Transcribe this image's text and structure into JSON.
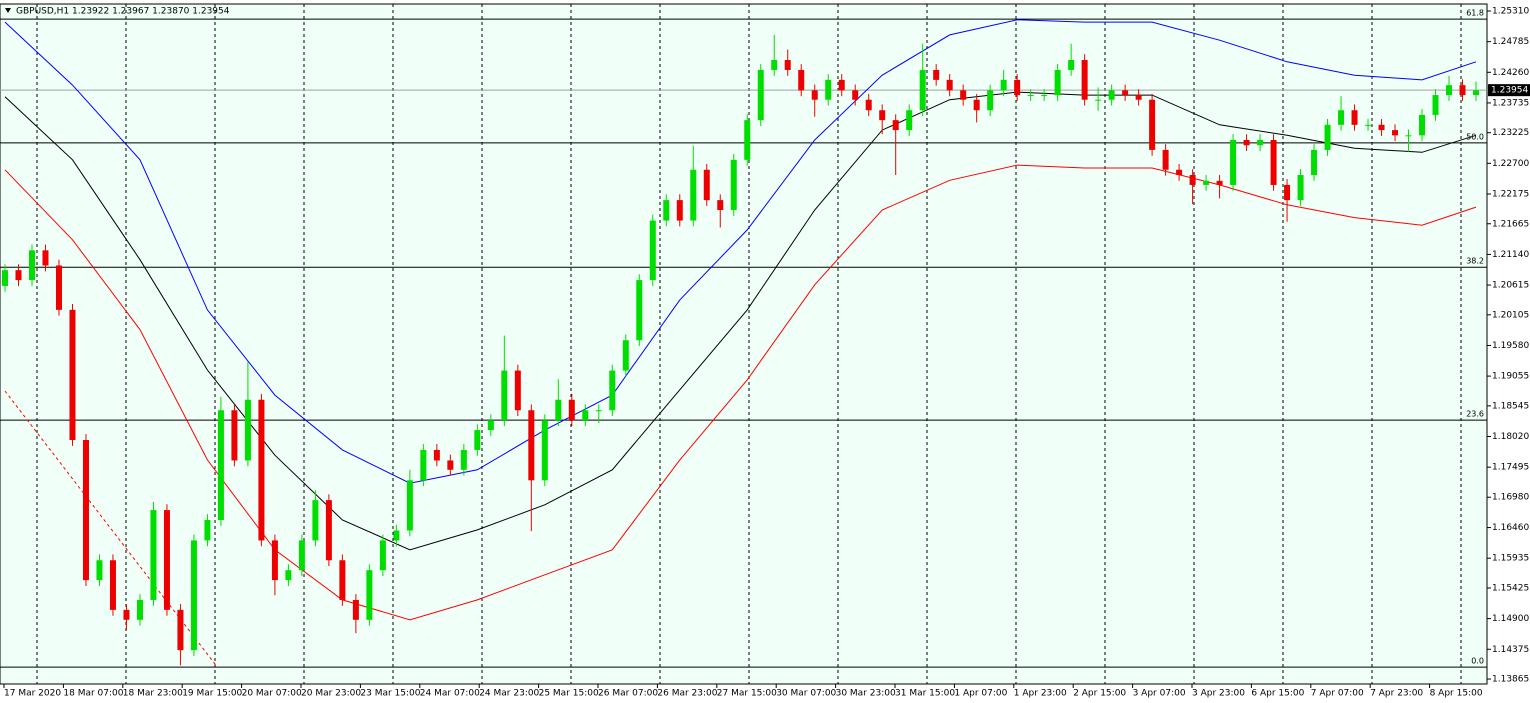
{
  "chart_data": {
    "type": "candlestick",
    "title": "GBPUSD,H1  1.23922 1.23967 1.23870 1.23954",
    "up_color": "#00dd00",
    "down_color": "#ee0000",
    "ylim": [
      1.1378,
      1.2543
    ],
    "yticks": [
      {
        "value": 1.2531,
        "label": "1.25310"
      },
      1.24785,
      {
        "value": 1.2426,
        "label": "1.24260"
      },
      1.23735,
      1.23225,
      {
        "value": 1.227,
        "label": "1.22700"
      },
      1.22175,
      1.21665,
      {
        "value": 1.2114,
        "label": "1.21140"
      },
      1.20615,
      1.20105,
      {
        "value": 1.1958,
        "label": "1.19580"
      },
      1.19055,
      1.18545,
      {
        "value": 1.1802,
        "label": "1.18020"
      },
      1.17495,
      {
        "value": 1.1698,
        "label": "1.16980"
      },
      {
        "value": 1.1646,
        "label": "1.16460"
      },
      1.15935,
      1.15425,
      {
        "value": 1.149,
        "label": "1.14900"
      },
      1.14375,
      1.13865
    ],
    "time_labels": [
      "17 Mar 2020",
      "18 Mar 07:00",
      "18 Mar 23:00",
      "19 Mar 15:00",
      "20 Mar 07:00",
      "20 Mar 23:00",
      "23 Mar 15:00",
      "24 Mar 07:00",
      "24 Mar 23:00",
      "25 Mar 15:00",
      "26 Mar 07:00",
      "26 Mar 23:00",
      "27 Mar 15:00",
      "30 Mar 07:00",
      "30 Mar 23:00",
      "31 Mar 15:00",
      "1 Apr 07:00",
      "1 Apr 23:00",
      "2 Apr 15:00",
      "3 Apr 07:00",
      "3 Apr 23:00",
      "6 Apr 15:00",
      "7 Apr 07:00",
      "7 Apr 23:00",
      "8 Apr 15:00"
    ],
    "open": [
      1.206,
      1.2087,
      1.207,
      1.2121,
      1.2095,
      1.2019,
      1.1796,
      1.1556,
      1.159,
      1.1505,
      1.1488,
      1.1522,
      1.1676,
      1.1505,
      1.1436,
      1.1624,
      1.1659,
      1.1847,
      1.1761,
      1.1865,
      1.1624,
      1.1556,
      1.1573,
      1.1624,
      1.1693,
      1.159,
      1.1522,
      1.1488,
      1.1573,
      1.1624,
      1.1641,
      1.1727,
      1.1779,
      1.1761,
      1.1745,
      1.1779,
      1.1813,
      1.183,
      1.1915,
      1.1847,
      1.1727,
      1.183,
      1.1865,
      1.183,
      1.1847,
      1.1847,
      1.1915,
      1.1967,
      1.207,
      1.2172,
      1.2207,
      1.2172,
      1.2259,
      1.2207,
      1.219,
      1.2276,
      1.2344,
      1.243,
      1.2447,
      1.243,
      1.2395,
      1.2379,
      1.2413,
      1.2395,
      1.2379,
      1.2361,
      1.2344,
      1.2327,
      1.2361,
      1.243,
      1.2413,
      1.2395,
      1.2379,
      1.2361,
      1.2395,
      1.2413,
      1.2387,
      1.2387,
      1.2387,
      1.243,
      1.2447,
      1.2379,
      1.2379,
      1.2395,
      1.2387,
      1.2379,
      1.2293,
      1.2259,
      1.225,
      1.2233,
      1.224,
      1.2233,
      1.231,
      1.2301,
      1.231,
      1.2233,
      1.2207,
      1.225,
      1.2293,
      1.2336,
      1.2361,
      1.2336,
      1.2336,
      1.2327,
      1.2318,
      1.2318,
      1.2353,
      1.2387,
      1.2404,
      1.2387
    ],
    "high": [
      1.2097,
      1.2097,
      1.2131,
      1.2131,
      1.2105,
      1.2029,
      1.1806,
      1.16,
      1.16,
      1.1515,
      1.1532,
      1.169,
      1.1686,
      1.1515,
      1.1634,
      1.1669,
      1.187,
      1.1857,
      1.193,
      1.1875,
      1.1634,
      1.1583,
      1.1634,
      1.171,
      1.1703,
      1.16,
      1.1532,
      1.1583,
      1.1634,
      1.1651,
      1.1745,
      1.1789,
      1.1789,
      1.1771,
      1.1789,
      1.1823,
      1.184,
      1.1975,
      1.1925,
      1.1857,
      1.184,
      1.19,
      1.1875,
      1.1857,
      1.1857,
      1.1925,
      1.1977,
      1.208,
      1.2182,
      1.2217,
      1.2217,
      1.23,
      1.2269,
      1.2217,
      1.2286,
      1.2354,
      1.244,
      1.249,
      1.2465,
      1.244,
      1.2405,
      1.2423,
      1.2423,
      1.2405,
      1.2389,
      1.2371,
      1.2354,
      1.2371,
      1.2475,
      1.244,
      1.2423,
      1.2405,
      1.2389,
      1.2405,
      1.243,
      1.2423,
      1.2397,
      1.2397,
      1.244,
      1.2475,
      1.2457,
      1.24,
      1.2405,
      1.2405,
      1.2397,
      1.2389,
      1.2303,
      1.2269,
      1.226,
      1.225,
      1.225,
      1.232,
      1.232,
      1.232,
      1.232,
      1.2243,
      1.226,
      1.2303,
      1.2346,
      1.2385,
      1.2371,
      1.2346,
      1.2346,
      1.2337,
      1.2328,
      1.2363,
      1.2397,
      1.242,
      1.2414,
      1.241
    ],
    "low": [
      1.205,
      1.206,
      1.206,
      1.2085,
      1.2009,
      1.1786,
      1.1546,
      1.1546,
      1.1495,
      1.147,
      1.1478,
      1.1512,
      1.1495,
      1.141,
      1.1426,
      1.1614,
      1.1649,
      1.1751,
      1.1751,
      1.1614,
      1.153,
      1.1546,
      1.1563,
      1.1614,
      1.158,
      1.1512,
      1.1465,
      1.1478,
      1.1563,
      1.1614,
      1.1631,
      1.1717,
      1.1751,
      1.1735,
      1.1735,
      1.1769,
      1.1803,
      1.182,
      1.1837,
      1.164,
      1.1717,
      1.182,
      1.182,
      1.182,
      1.1825,
      1.1837,
      1.1905,
      1.1957,
      1.206,
      1.2162,
      1.2162,
      1.2162,
      1.2197,
      1.216,
      1.218,
      1.2266,
      1.2334,
      1.242,
      1.242,
      1.2385,
      1.235,
      1.2369,
      1.2385,
      1.2369,
      1.2351,
      1.232,
      1.225,
      1.2317,
      1.2351,
      1.2403,
      1.2385,
      1.2369,
      1.234,
      1.2351,
      1.2385,
      1.2377,
      1.2377,
      1.2377,
      1.2377,
      1.242,
      1.2369,
      1.236,
      1.2369,
      1.2377,
      1.2369,
      1.2283,
      1.2249,
      1.224,
      1.22,
      1.2223,
      1.221,
      1.2223,
      1.2291,
      1.2291,
      1.2223,
      1.217,
      1.2197,
      1.224,
      1.2283,
      1.2326,
      1.2326,
      1.2326,
      1.2317,
      1.2308,
      1.229,
      1.2308,
      1.2343,
      1.2377,
      1.2377,
      1.2377
    ],
    "close": [
      1.2087,
      1.207,
      1.2121,
      1.2095,
      1.2019,
      1.1796,
      1.1556,
      1.159,
      1.1505,
      1.1488,
      1.1522,
      1.1676,
      1.1505,
      1.1436,
      1.1624,
      1.1659,
      1.1847,
      1.1761,
      1.1865,
      1.1624,
      1.1556,
      1.1573,
      1.1624,
      1.1693,
      1.159,
      1.1522,
      1.1488,
      1.1573,
      1.1624,
      1.1641,
      1.1727,
      1.1779,
      1.1761,
      1.1745,
      1.1779,
      1.1813,
      1.183,
      1.1915,
      1.1847,
      1.1727,
      1.183,
      1.1865,
      1.183,
      1.1847,
      1.1847,
      1.1915,
      1.1967,
      1.207,
      1.2172,
      1.2207,
      1.2172,
      1.2259,
      1.2207,
      1.219,
      1.2276,
      1.2344,
      1.243,
      1.2447,
      1.243,
      1.2395,
      1.2379,
      1.2413,
      1.2395,
      1.2379,
      1.2361,
      1.2344,
      1.2327,
      1.2361,
      1.243,
      1.2413,
      1.2395,
      1.2379,
      1.2361,
      1.2395,
      1.2413,
      1.2387,
      1.2387,
      1.2387,
      1.243,
      1.2447,
      1.2379,
      1.2379,
      1.2395,
      1.2387,
      1.2379,
      1.2293,
      1.2259,
      1.225,
      1.2233,
      1.224,
      1.2233,
      1.231,
      1.2301,
      1.231,
      1.2233,
      1.2207,
      1.225,
      1.2293,
      1.2336,
      1.2361,
      1.2336,
      1.2336,
      1.2327,
      1.2318,
      1.2318,
      1.2353,
      1.2387,
      1.2404,
      1.2387,
      1.2395
    ],
    "overlays": [
      {
        "color": "#0000ff",
        "x": [
          0,
          5,
          10,
          15,
          20,
          25,
          30,
          35,
          40,
          45,
          50,
          55,
          60,
          65,
          70,
          75,
          80,
          85,
          90,
          95,
          100,
          105,
          109
        ],
        "values": [
          1.2512,
          1.2404,
          1.2276,
          1.2019,
          1.1873,
          1.1779,
          1.1722,
          1.1745,
          1.1813,
          1.1873,
          1.2036,
          1.2156,
          1.231,
          1.2421,
          1.249,
          1.2516,
          1.2512,
          1.2512,
          1.2481,
          1.2444,
          1.2421,
          1.2413,
          1.2444
        ]
      },
      {
        "color": "#000000",
        "x": [
          0,
          5,
          10,
          15,
          20,
          25,
          30,
          35,
          40,
          45,
          50,
          55,
          60,
          65,
          70,
          75,
          80,
          85,
          90,
          95,
          100,
          105,
          109
        ],
        "values": [
          1.2384,
          1.2276,
          1.2105,
          1.1916,
          1.177,
          1.1659,
          1.1608,
          1.1642,
          1.1685,
          1.1745,
          1.1882,
          1.2019,
          1.219,
          1.2327,
          1.2379,
          1.2392,
          1.2387,
          1.2387,
          1.2336,
          1.2318,
          1.2296,
          1.2289,
          1.2318
        ]
      },
      {
        "color": "#ff0000",
        "x": [
          0,
          5,
          10,
          15,
          20,
          25,
          30,
          35,
          40,
          45,
          50,
          55,
          60,
          65,
          70,
          75,
          80,
          85,
          90,
          95,
          100,
          105,
          109
        ],
        "values": [
          1.2259,
          1.2139,
          1.1985,
          1.1762,
          1.1608,
          1.1522,
          1.1488,
          1.1522,
          1.1565,
          1.1608,
          1.1762,
          1.1899,
          1.2062,
          1.219,
          1.2241,
          1.2267,
          1.2262,
          1.2262,
          1.2233,
          1.2199,
          1.2177,
          1.2164,
          1.2195
        ]
      }
    ],
    "trendline": {
      "color": "#ff0000",
      "x": [
        0,
        15.6
      ],
      "values": [
        1.188,
        1.1411
      ]
    },
    "levels": [
      {
        "label": "61.8",
        "value": 1.2517
      },
      {
        "label": "50.0",
        "value": 1.2305
      },
      {
        "label": "38.2",
        "value": 1.2092
      },
      {
        "label": "23.6",
        "value": 1.183
      },
      {
        "label": "0.0",
        "value": 1.1407
      }
    ],
    "last_price": 1.23954
  }
}
